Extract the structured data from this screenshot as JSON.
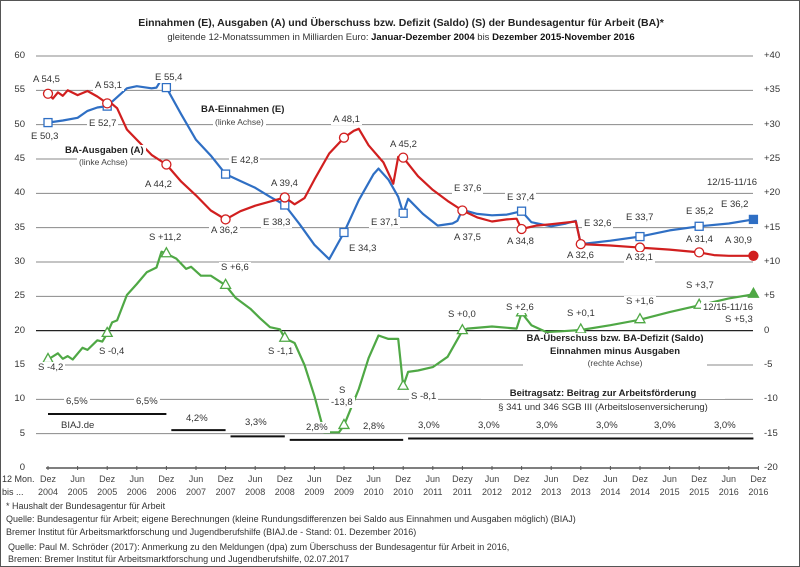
{
  "title": "Einnahmen (E), Ausgaben (A) und Überschuss bzw. Defizit (Saldo) (S) der Bundesagentur für Arbeit (BA)*",
  "subtitle": {
    "pre": "gleitende 12-Monatssummen  in Milliarden Euro: ",
    "from": "Januar-Dezember 2004",
    "mid": " bis ",
    "to": "Dezember 2015-November 2016"
  },
  "x_row_label": [
    "12 Mon.",
    "bis ..."
  ],
  "footnotes": [
    "* Haushalt  der Bundesagentur  für Arbeit",
    "Quelle:  Bundesagentur  für Arbeit; eigene Berechnungen (kleine Rundungsdifferenzen bei Saldo aus Einnahmen und Ausgaben möglich) (BIAJ)",
    "Bremer Institut für Arbeitsmarktforschung und Jugendberufshilfe (BIAJ.de - Stand: 01. Dezember 2016)",
    "Quelle:  Paul M. Schröder (2017): Anmerkung zu den Meldungen  (dpa) zum Überschuss der Bundesagentur  für Arbeit  in 2016,",
    "Bremen:  Bremer Institut für Arbeitsmarktforschung und Jugendberufshilfe,   02.07.2017"
  ],
  "colors": {
    "einnahmen": "#2f6fc4",
    "ausgaben": "#d11f1f",
    "saldo": "#4fa845",
    "grid": "#8a8a8a"
  },
  "chart_data": {
    "type": "line",
    "title": "Einnahmen (E), Ausgaben (A) und Überschuss bzw. Defizit (Saldo) (S) der Bundesagentur für Arbeit (BA)*",
    "left_axis": {
      "range": [
        0,
        60
      ],
      "ticks": [
        "0",
        "5",
        "10",
        "15",
        "20",
        "25",
        "30",
        "35",
        "40",
        "45",
        "50",
        "55",
        "60"
      ]
    },
    "right_axis": {
      "range": [
        -20,
        40
      ],
      "ticks": [
        "-20",
        "-15",
        "-10",
        "-5",
        "0",
        "+5",
        "+10",
        "+15",
        "+20",
        "+25",
        "+30",
        "+35",
        "+40"
      ]
    },
    "x_ticks": [
      [
        "Dez",
        "2004"
      ],
      [
        "Jun",
        "2005"
      ],
      [
        "Dez",
        "2005"
      ],
      [
        "Jun",
        "2006"
      ],
      [
        "Dez",
        "2006"
      ],
      [
        "Jun",
        "2007"
      ],
      [
        "Dez",
        "2007"
      ],
      [
        "Jun",
        "2008"
      ],
      [
        "Dez",
        "2008"
      ],
      [
        "Jun",
        "2009"
      ],
      [
        "Dez",
        "2009"
      ],
      [
        "Jun",
        "2010"
      ],
      [
        "Dez",
        "2010"
      ],
      [
        "Jun",
        "2011"
      ],
      [
        "Dezy",
        "2011"
      ],
      [
        "Jun",
        "2012"
      ],
      [
        "Dez",
        "2012"
      ],
      [
        "Jun",
        "2013"
      ],
      [
        "Dez",
        "2013"
      ],
      [
        "Jun",
        "2014"
      ],
      [
        "Dez",
        "2014"
      ],
      [
        "Jun",
        "2015"
      ],
      [
        "Dez",
        "2015"
      ],
      [
        "Jun",
        "2016"
      ],
      [
        "Dez",
        "2016"
      ]
    ],
    "grid": true,
    "series": [
      {
        "name": "BA-Einnahmen (E)",
        "axis": "left",
        "marker": "square",
        "points": [
          [
            "2004-12",
            50.3
          ],
          [
            "2005-03",
            50.6
          ],
          [
            "2005-06",
            51.0
          ],
          [
            "2005-08",
            52.0
          ],
          [
            "2005-10",
            52.5
          ],
          [
            "2005-12",
            52.7
          ],
          [
            "2006-02",
            54.0
          ],
          [
            "2006-04",
            55.3
          ],
          [
            "2006-06",
            55.6
          ],
          [
            "2006-09",
            55.3
          ],
          [
            "2006-10",
            55.4
          ],
          [
            "2006-11",
            56.6
          ],
          [
            "2006-12",
            55.4
          ],
          [
            "2007-03",
            51.5
          ],
          [
            "2007-06",
            47.8
          ],
          [
            "2007-09",
            45.5
          ],
          [
            "2007-12",
            42.8
          ],
          [
            "2008-03",
            41.8
          ],
          [
            "2008-06",
            40.8
          ],
          [
            "2008-09",
            39.5
          ],
          [
            "2008-12",
            38.3
          ],
          [
            "2009-03",
            35.5
          ],
          [
            "2009-06",
            32.5
          ],
          [
            "2009-09",
            30.4
          ],
          [
            "2009-12",
            34.3
          ],
          [
            "2010-03",
            39.0
          ],
          [
            "2010-06",
            42.8
          ],
          [
            "2010-07",
            43.6
          ],
          [
            "2010-09",
            42.0
          ],
          [
            "2010-11",
            39.5
          ],
          [
            "2010-12",
            37.1
          ],
          [
            "2011-01",
            39.2
          ],
          [
            "2011-04",
            37.0
          ],
          [
            "2011-07",
            35.3
          ],
          [
            "2011-10",
            35.6
          ],
          [
            "2011-11",
            36.0
          ],
          [
            "2011-12",
            37.6
          ],
          [
            "2012-03",
            37.0
          ],
          [
            "2012-06",
            36.8
          ],
          [
            "2012-09",
            36.9
          ],
          [
            "2012-12",
            37.4
          ],
          [
            "2013-02",
            35.8
          ],
          [
            "2013-06",
            35.2
          ],
          [
            "2013-09",
            35.6
          ],
          [
            "2013-11",
            36.0
          ],
          [
            "2013-12",
            32.6
          ],
          [
            "2014-06",
            33.1
          ],
          [
            "2014-12",
            33.7
          ],
          [
            "2015-06",
            34.6
          ],
          [
            "2015-12",
            35.2
          ],
          [
            "2016-06",
            35.6
          ],
          [
            "2016-11",
            36.2
          ]
        ],
        "markers": [
          "2004-12",
          "2005-12",
          "2006-12",
          "2007-12",
          "2008-12",
          "2009-12",
          "2010-12",
          "2012-12",
          "2014-12",
          "2015-12"
        ],
        "filled_marker": "2016-11"
      },
      {
        "name": "BA-Ausgaben (A)",
        "axis": "left",
        "marker": "circle",
        "points": [
          [
            "2004-12",
            54.5
          ],
          [
            "2005-01",
            53.8
          ],
          [
            "2005-02",
            54.7
          ],
          [
            "2005-03",
            54.2
          ],
          [
            "2005-04",
            55.0
          ],
          [
            "2005-06",
            54.3
          ],
          [
            "2005-08",
            54.9
          ],
          [
            "2005-10",
            54.1
          ],
          [
            "2005-12",
            53.1
          ],
          [
            "2006-01",
            53.0
          ],
          [
            "2006-02",
            52.4
          ],
          [
            "2006-04",
            49.3
          ],
          [
            "2006-06",
            47.8
          ],
          [
            "2006-09",
            45.6
          ],
          [
            "2006-12",
            44.2
          ],
          [
            "2007-03",
            41.7
          ],
          [
            "2007-06",
            39.7
          ],
          [
            "2007-09",
            37.5
          ],
          [
            "2007-12",
            36.2
          ],
          [
            "2008-03",
            37.4
          ],
          [
            "2008-06",
            38.2
          ],
          [
            "2008-09",
            38.8
          ],
          [
            "2008-12",
            39.4
          ],
          [
            "2009-02",
            38.4
          ],
          [
            "2009-04",
            39.3
          ],
          [
            "2009-06",
            42.0
          ],
          [
            "2009-09",
            45.8
          ],
          [
            "2009-12",
            48.1
          ],
          [
            "2010-02",
            49.1
          ],
          [
            "2010-03",
            49.4
          ],
          [
            "2010-05",
            47.0
          ],
          [
            "2010-08",
            44.5
          ],
          [
            "2010-10",
            41.4
          ],
          [
            "2010-11",
            45.3
          ],
          [
            "2010-12",
            45.2
          ],
          [
            "2011-03",
            42.5
          ],
          [
            "2011-06",
            40.5
          ],
          [
            "2011-09",
            38.9
          ],
          [
            "2011-12",
            37.5
          ],
          [
            "2012-03",
            36.5
          ],
          [
            "2012-06",
            35.9
          ],
          [
            "2012-09",
            36.2
          ],
          [
            "2012-11",
            36.3
          ],
          [
            "2012-12",
            34.8
          ],
          [
            "2013-03",
            35.3
          ],
          [
            "2013-06",
            35.5
          ],
          [
            "2013-11",
            35.9
          ],
          [
            "2013-12",
            32.6
          ],
          [
            "2014-06",
            32.4
          ],
          [
            "2014-12",
            32.1
          ],
          [
            "2015-06",
            31.8
          ],
          [
            "2015-12",
            31.4
          ],
          [
            "2016-03",
            31.0
          ],
          [
            "2016-06",
            30.9
          ],
          [
            "2016-11",
            30.9
          ]
        ],
        "markers": [
          "2004-12",
          "2005-12",
          "2006-12",
          "2007-12",
          "2008-12",
          "2009-12",
          "2010-12",
          "2011-12",
          "2012-12",
          "2013-12",
          "2014-12",
          "2015-12"
        ],
        "filled_marker": "2016-11"
      },
      {
        "name": "BA-Überschuss bzw. BA-Defizit (Saldo)",
        "axis": "right",
        "marker": "triangle",
        "points": [
          [
            "2004-12",
            -4.2
          ],
          [
            "2005-02",
            -3.3
          ],
          [
            "2005-03",
            -4.1
          ],
          [
            "2005-04",
            -3.7
          ],
          [
            "2005-05",
            -4.2
          ],
          [
            "2005-07",
            -2.5
          ],
          [
            "2005-08",
            -2.8
          ],
          [
            "2005-10",
            -1.4
          ],
          [
            "2005-11",
            -1.6
          ],
          [
            "2005-12",
            -0.4
          ],
          [
            "2006-01",
            1.2
          ],
          [
            "2006-02",
            1.5
          ],
          [
            "2006-04",
            5.2
          ],
          [
            "2006-06",
            6.8
          ],
          [
            "2006-08",
            8.5
          ],
          [
            "2006-10",
            9.2
          ],
          [
            "2006-11",
            11.5
          ],
          [
            "2006-12",
            11.2
          ],
          [
            "2007-02",
            10.5
          ],
          [
            "2007-04",
            9.0
          ],
          [
            "2007-05",
            9.3
          ],
          [
            "2007-07",
            8.0
          ],
          [
            "2007-09",
            8.0
          ],
          [
            "2007-12",
            6.6
          ],
          [
            "2008-02",
            4.8
          ],
          [
            "2008-05",
            3.2
          ],
          [
            "2008-07",
            1.8
          ],
          [
            "2008-09",
            0.5
          ],
          [
            "2008-11",
            0.2
          ],
          [
            "2008-12",
            -1.1
          ],
          [
            "2009-02",
            -1.8
          ],
          [
            "2009-04",
            -5.0
          ],
          [
            "2009-06",
            -9.5
          ],
          [
            "2009-08",
            -14.8
          ],
          [
            "2009-11",
            -14.8
          ],
          [
            "2009-12",
            -13.8
          ],
          [
            "2010-03",
            -8.5
          ],
          [
            "2010-05",
            -4.0
          ],
          [
            "2010-07",
            -0.7
          ],
          [
            "2010-09",
            -1.2
          ],
          [
            "2010-11",
            -1.2
          ],
          [
            "2010-12",
            -8.1
          ],
          [
            "2011-01",
            -6.0
          ],
          [
            "2011-03",
            -5.8
          ],
          [
            "2011-06",
            -5.3
          ],
          [
            "2011-09",
            -3.8
          ],
          [
            "2011-12",
            0.0
          ],
          [
            "2012-01",
            0.3
          ],
          [
            "2012-06",
            0.6
          ],
          [
            "2012-11",
            0.3
          ],
          [
            "2012-12",
            2.6
          ],
          [
            "2013-02",
            0.8
          ],
          [
            "2013-05",
            -0.2
          ],
          [
            "2013-08",
            -0.1
          ],
          [
            "2013-12",
            0.1
          ],
          [
            "2014-06",
            0.8
          ],
          [
            "2014-12",
            1.6
          ],
          [
            "2015-06",
            2.7
          ],
          [
            "2015-12",
            3.7
          ],
          [
            "2016-06",
            4.7
          ],
          [
            "2016-11",
            5.3
          ]
        ],
        "markers": [
          "2004-12",
          "2005-12",
          "2006-12",
          "2007-12",
          "2008-12",
          "2009-12",
          "2010-12",
          "2011-12",
          "2012-12",
          "2013-12",
          "2014-12",
          "2015-12"
        ],
        "filled_marker": "2016-11"
      }
    ],
    "beitragsatz": [
      {
        "label": "6,5%",
        "rate": 6.5,
        "from": "2004-12",
        "to": "2006-12"
      },
      {
        "label": "4,2%",
        "rate": 4.2,
        "from": "2007-01",
        "to": "2007-12"
      },
      {
        "label": "3,3%",
        "rate": 3.3,
        "from": "2008-01",
        "to": "2008-12"
      },
      {
        "label": "2,8%",
        "rate": 2.8,
        "from": "2009-01",
        "to": "2010-12"
      },
      {
        "label": "3,0%",
        "rate": 3.0,
        "from": "2011-01",
        "to": "2016-11"
      }
    ],
    "beitragsatz_labels": [
      "6,5%",
      "6,5%",
      "4,2%",
      "3,3%",
      "2,8%",
      "2,8%",
      "3,0%",
      "3,0%",
      "3,0%",
      "3,0%",
      "3,0%",
      "3,0%"
    ],
    "annotations": [
      "A 54,5",
      "E 50,3",
      "A 53,1",
      "E 52,7",
      "E 55,4",
      "BA-Einnahmen (E)",
      "(linke Achse)",
      "BA-Ausgaben (A)",
      "(linke Achse)",
      "A 44,2",
      "E 42,8",
      "A 36,2",
      "A 39,4",
      "E 38,3",
      "A 48,1",
      "E 34,3",
      "A 45,2",
      "E 37,1",
      "E 37,6",
      "A 37,5",
      "E 37,4",
      "A 34,8",
      "E 32,6",
      "A 32,6",
      "E 33,7",
      "A 32,1",
      "E 35,2",
      "A 31,4",
      "12/15-11/16",
      "E 36,2",
      "A 30,9",
      "S +11,2",
      "S +6,6",
      "S -0,4",
      "S -4,2",
      "S -1,1",
      "S",
      "-13,8",
      "S -8,1",
      "S +0,0",
      "S +2,6",
      "S +0,1",
      "S +1,6",
      "S +3,7",
      "12/15-11/16",
      "S +5,3",
      "BA-Überschuss bzw. BA-Defizit (Saldo)",
      "Einnahmen minus Ausgaben",
      "(rechte Achse)",
      "Beitragsatz: Beitrag zur Arbeitsförderung",
      "§ 341 und 346 SGB III (Arbeitslosenversicherung)",
      "BIAJ.de"
    ]
  }
}
